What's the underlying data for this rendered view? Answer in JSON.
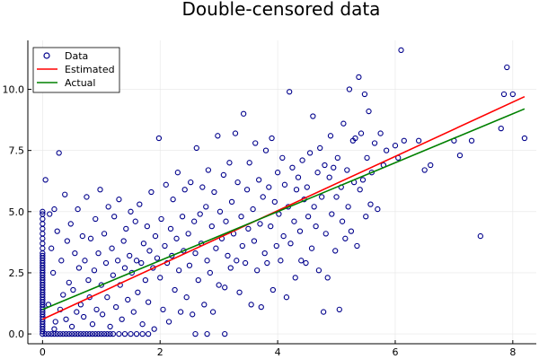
{
  "chart_data": {
    "type": "scatter",
    "title": "Double-censored data",
    "xlabel": "",
    "ylabel": "",
    "xlim": [
      -0.25,
      8.4
    ],
    "ylim": [
      -0.4,
      12.0
    ],
    "x_ticks": [
      0,
      2,
      4,
      6,
      8
    ],
    "y_ticks": [
      0.0,
      2.5,
      5.0,
      7.5,
      10.0
    ],
    "x_tick_labels": [
      "0",
      "2",
      "4",
      "6",
      "8"
    ],
    "y_tick_labels": [
      "0.0",
      "2.5",
      "5.0",
      "7.5",
      "10.0"
    ],
    "grid": true,
    "legend_position": "top-left",
    "legend": [
      "Data",
      "Estimated",
      "Actual"
    ],
    "colors": {
      "data": "#00008b",
      "estimated": "#ff0000",
      "actual": "#008000"
    },
    "series": [
      {
        "name": "Data",
        "kind": "scatter",
        "points": [
          [
            0.0,
            0.0
          ],
          [
            0.0,
            0.1
          ],
          [
            0.0,
            0.2
          ],
          [
            0.0,
            0.3
          ],
          [
            0.0,
            0.4
          ],
          [
            0.0,
            0.5
          ],
          [
            0.0,
            0.6
          ],
          [
            0.0,
            0.7
          ],
          [
            0.0,
            0.8
          ],
          [
            0.0,
            0.9
          ],
          [
            0.0,
            1.0
          ],
          [
            0.0,
            1.1
          ],
          [
            0.0,
            1.2
          ],
          [
            0.0,
            1.3
          ],
          [
            0.0,
            1.4
          ],
          [
            0.0,
            1.5
          ],
          [
            0.0,
            1.6
          ],
          [
            0.0,
            1.7
          ],
          [
            0.0,
            1.8
          ],
          [
            0.0,
            1.9
          ],
          [
            0.0,
            2.0
          ],
          [
            0.0,
            2.1
          ],
          [
            0.0,
            2.2
          ],
          [
            0.0,
            2.3
          ],
          [
            0.0,
            2.4
          ],
          [
            0.0,
            2.5
          ],
          [
            0.0,
            2.6
          ],
          [
            0.0,
            2.7
          ],
          [
            0.0,
            2.8
          ],
          [
            0.0,
            2.9
          ],
          [
            0.0,
            3.0
          ],
          [
            0.0,
            3.1
          ],
          [
            0.0,
            3.2
          ],
          [
            0.0,
            3.3
          ],
          [
            0.0,
            3.5
          ],
          [
            0.0,
            3.7
          ],
          [
            0.0,
            3.9
          ],
          [
            0.0,
            4.1
          ],
          [
            0.0,
            4.3
          ],
          [
            0.0,
            4.5
          ],
          [
            0.0,
            4.7
          ],
          [
            0.0,
            4.9
          ],
          [
            0.0,
            5.0
          ],
          [
            0.05,
            0.0
          ],
          [
            0.1,
            0.0
          ],
          [
            0.15,
            0.0
          ],
          [
            0.2,
            0.0
          ],
          [
            0.25,
            0.0
          ],
          [
            0.3,
            0.0
          ],
          [
            0.35,
            0.0
          ],
          [
            0.4,
            0.0
          ],
          [
            0.45,
            0.0
          ],
          [
            0.5,
            0.0
          ],
          [
            0.55,
            0.0
          ],
          [
            0.6,
            0.0
          ],
          [
            0.65,
            0.0
          ],
          [
            0.7,
            0.0
          ],
          [
            0.75,
            0.0
          ],
          [
            0.8,
            0.0
          ],
          [
            0.85,
            0.0
          ],
          [
            0.9,
            0.0
          ],
          [
            0.95,
            0.0
          ],
          [
            1.0,
            0.0
          ],
          [
            1.05,
            0.0
          ],
          [
            1.1,
            0.0
          ],
          [
            1.15,
            0.0
          ],
          [
            1.2,
            0.0
          ],
          [
            1.3,
            0.0
          ],
          [
            1.4,
            0.0
          ],
          [
            1.5,
            0.0
          ],
          [
            1.6,
            0.0
          ],
          [
            1.7,
            0.0
          ],
          [
            1.8,
            0.0
          ],
          [
            2.6,
            0.0
          ],
          [
            2.8,
            0.0
          ],
          [
            3.1,
            0.0
          ],
          [
            0.05,
            6.3
          ],
          [
            0.1,
            1.2
          ],
          [
            0.12,
            4.9
          ],
          [
            0.15,
            3.5
          ],
          [
            0.18,
            2.5
          ],
          [
            0.2,
            0.2
          ],
          [
            0.2,
            5.1
          ],
          [
            0.22,
            0.5
          ],
          [
            0.25,
            4.2
          ],
          [
            0.28,
            7.4
          ],
          [
            0.3,
            1.0
          ],
          [
            0.32,
            3.0
          ],
          [
            0.35,
            1.6
          ],
          [
            0.38,
            5.7
          ],
          [
            0.4,
            0.6
          ],
          [
            0.42,
            3.8
          ],
          [
            0.45,
            2.1
          ],
          [
            0.48,
            4.5
          ],
          [
            0.5,
            0.3
          ],
          [
            0.52,
            1.8
          ],
          [
            0.55,
            3.3
          ],
          [
            0.58,
            0.9
          ],
          [
            0.6,
            5.1
          ],
          [
            0.62,
            2.7
          ],
          [
            0.65,
            1.2
          ],
          [
            0.68,
            4.0
          ],
          [
            0.7,
            0.7
          ],
          [
            0.72,
            3.0
          ],
          [
            0.75,
            5.6
          ],
          [
            0.78,
            2.2
          ],
          [
            0.8,
            1.5
          ],
          [
            0.82,
            3.9
          ],
          [
            0.85,
            0.4
          ],
          [
            0.88,
            2.6
          ],
          [
            0.9,
            4.7
          ],
          [
            0.92,
            1.0
          ],
          [
            0.95,
            3.3
          ],
          [
            0.98,
            5.9
          ],
          [
            1.0,
            2.0
          ],
          [
            1.02,
            0.8
          ],
          [
            1.05,
            4.1
          ],
          [
            1.08,
            2.9
          ],
          [
            1.1,
            1.5
          ],
          [
            1.12,
            5.2
          ],
          [
            1.15,
            0.3
          ],
          [
            1.18,
            3.5
          ],
          [
            1.2,
            2.4
          ],
          [
            1.22,
            4.8
          ],
          [
            1.25,
            1.1
          ],
          [
            1.28,
            3.0
          ],
          [
            1.3,
            5.5
          ],
          [
            1.32,
            2.0
          ],
          [
            1.35,
            0.6
          ],
          [
            1.38,
            3.8
          ],
          [
            1.4,
            2.7
          ],
          [
            1.42,
            4.3
          ],
          [
            1.45,
            1.4
          ],
          [
            1.48,
            3.2
          ],
          [
            1.5,
            5.0
          ],
          [
            1.52,
            2.5
          ],
          [
            1.55,
            0.9
          ],
          [
            1.58,
            4.6
          ],
          [
            1.6,
            3.0
          ],
          [
            1.62,
            1.7
          ],
          [
            1.65,
            5.3
          ],
          [
            1.68,
            2.9
          ],
          [
            1.7,
            0.4
          ],
          [
            1.72,
            3.7
          ],
          [
            1.75,
            2.2
          ],
          [
            1.78,
            4.4
          ],
          [
            1.8,
            1.3
          ],
          [
            1.82,
            3.4
          ],
          [
            1.85,
            5.8
          ],
          [
            1.88,
            2.7
          ],
          [
            1.9,
            0.2
          ],
          [
            1.92,
            4.0
          ],
          [
            1.95,
            3.1
          ],
          [
            1.98,
            8.0
          ],
          [
            2.0,
            2.3
          ],
          [
            2.02,
            4.7
          ],
          [
            2.05,
            1.0
          ],
          [
            2.08,
            3.6
          ],
          [
            2.1,
            6.1
          ],
          [
            2.12,
            2.9
          ],
          [
            2.15,
            0.5
          ],
          [
            2.18,
            4.3
          ],
          [
            2.2,
            3.2
          ],
          [
            2.22,
            5.5
          ],
          [
            2.25,
            1.8
          ],
          [
            2.28,
            3.9
          ],
          [
            2.3,
            6.6
          ],
          [
            2.32,
            2.6
          ],
          [
            2.35,
            0.9
          ],
          [
            2.38,
            4.8
          ],
          [
            2.4,
            3.4
          ],
          [
            2.42,
            5.9
          ],
          [
            2.45,
            1.5
          ],
          [
            2.48,
            4.1
          ],
          [
            2.5,
            2.8
          ],
          [
            2.52,
            6.2
          ],
          [
            2.55,
            0.8
          ],
          [
            2.58,
            4.6
          ],
          [
            2.6,
            3.3
          ],
          [
            2.62,
            7.6
          ],
          [
            2.65,
            2.2
          ],
          [
            2.68,
            4.9
          ],
          [
            2.7,
            3.7
          ],
          [
            2.72,
            6.0
          ],
          [
            2.75,
            1.2
          ],
          [
            2.78,
            5.2
          ],
          [
            2.8,
            3.0
          ],
          [
            2.82,
            6.7
          ],
          [
            2.85,
            2.5
          ],
          [
            2.88,
            4.4
          ],
          [
            2.9,
            0.9
          ],
          [
            2.92,
            5.8
          ],
          [
            2.95,
            3.5
          ],
          [
            2.98,
            8.1
          ],
          [
            3.0,
            2.0
          ],
          [
            3.02,
            5.0
          ],
          [
            3.05,
            3.9
          ],
          [
            3.08,
            6.5
          ],
          [
            3.1,
            1.9
          ],
          [
            3.12,
            4.6
          ],
          [
            3.15,
            3.2
          ],
          [
            3.18,
            7.0
          ],
          [
            3.2,
            2.7
          ],
          [
            3.22,
            5.4
          ],
          [
            3.25,
            4.1
          ],
          [
            3.28,
            8.2
          ],
          [
            3.3,
            3.0
          ],
          [
            3.32,
            6.2
          ],
          [
            3.35,
            1.7
          ],
          [
            3.38,
            4.8
          ],
          [
            3.4,
            3.6
          ],
          [
            3.42,
            9.0
          ],
          [
            3.45,
            2.9
          ],
          [
            3.48,
            5.9
          ],
          [
            3.5,
            4.3
          ],
          [
            3.52,
            7.0
          ],
          [
            3.55,
            1.2
          ],
          [
            3.58,
            5.1
          ],
          [
            3.6,
            3.8
          ],
          [
            3.62,
            7.8
          ],
          [
            3.65,
            2.6
          ],
          [
            3.68,
            6.3
          ],
          [
            3.7,
            4.5
          ],
          [
            3.72,
            1.1
          ],
          [
            3.75,
            5.6
          ],
          [
            3.78,
            3.3
          ],
          [
            3.8,
            7.5
          ],
          [
            3.82,
            2.9
          ],
          [
            3.85,
            6.0
          ],
          [
            3.88,
            4.4
          ],
          [
            3.9,
            8.0
          ],
          [
            3.92,
            1.8
          ],
          [
            3.95,
            5.4
          ],
          [
            3.98,
            3.6
          ],
          [
            4.0,
            6.6
          ],
          [
            4.02,
            4.9
          ],
          [
            4.05,
            3.0
          ],
          [
            4.08,
            7.2
          ],
          [
            4.1,
            4.0
          ],
          [
            4.12,
            6.1
          ],
          [
            4.15,
            1.5
          ],
          [
            4.18,
            5.2
          ],
          [
            4.2,
            9.9
          ],
          [
            4.22,
            3.7
          ],
          [
            4.25,
            6.8
          ],
          [
            4.28,
            4.6
          ],
          [
            4.3,
            2.3
          ],
          [
            4.32,
            5.9
          ],
          [
            4.35,
            6.4
          ],
          [
            4.38,
            4.2
          ],
          [
            4.4,
            3.0
          ],
          [
            4.42,
            7.1
          ],
          [
            4.45,
            5.5
          ],
          [
            4.48,
            2.9
          ],
          [
            4.5,
            6.0
          ],
          [
            4.52,
            4.8
          ],
          [
            4.55,
            7.4
          ],
          [
            4.58,
            3.5
          ],
          [
            4.6,
            8.9
          ],
          [
            4.62,
            5.2
          ],
          [
            4.65,
            4.4
          ],
          [
            4.68,
            6.6
          ],
          [
            4.7,
            2.6
          ],
          [
            4.72,
            7.6
          ],
          [
            4.75,
            5.6
          ],
          [
            4.78,
            0.9
          ],
          [
            4.8,
            6.9
          ],
          [
            4.82,
            4.1
          ],
          [
            4.85,
            2.3
          ],
          [
            4.88,
            6.4
          ],
          [
            4.9,
            8.1
          ],
          [
            4.92,
            4.9
          ],
          [
            4.95,
            6.8
          ],
          [
            4.98,
            3.4
          ],
          [
            5.0,
            5.6
          ],
          [
            5.02,
            7.2
          ],
          [
            5.05,
            1.0
          ],
          [
            5.08,
            6.0
          ],
          [
            5.1,
            4.6
          ],
          [
            5.12,
            8.6
          ],
          [
            5.15,
            3.9
          ],
          [
            5.18,
            6.7
          ],
          [
            5.2,
            5.2
          ],
          [
            5.22,
            10.0
          ],
          [
            5.25,
            4.2
          ],
          [
            5.28,
            7.9
          ],
          [
            5.3,
            6.2
          ],
          [
            5.32,
            8.0
          ],
          [
            5.35,
            3.6
          ],
          [
            5.38,
            10.5
          ],
          [
            5.4,
            5.9
          ],
          [
            5.42,
            8.2
          ],
          [
            5.45,
            6.3
          ],
          [
            5.48,
            9.8
          ],
          [
            5.5,
            4.8
          ],
          [
            5.52,
            7.2
          ],
          [
            5.55,
            9.1
          ],
          [
            5.58,
            5.3
          ],
          [
            5.6,
            6.6
          ],
          [
            5.65,
            7.8
          ],
          [
            5.7,
            5.1
          ],
          [
            5.75,
            8.2
          ],
          [
            5.8,
            6.9
          ],
          [
            5.85,
            7.5
          ],
          [
            6.0,
            7.7
          ],
          [
            6.05,
            7.2
          ],
          [
            6.1,
            11.6
          ],
          [
            6.15,
            7.9
          ],
          [
            6.4,
            7.9
          ],
          [
            6.5,
            6.7
          ],
          [
            6.6,
            6.9
          ],
          [
            7.0,
            7.9
          ],
          [
            7.1,
            7.3
          ],
          [
            7.3,
            7.9
          ],
          [
            7.45,
            4.0
          ],
          [
            7.8,
            8.4
          ],
          [
            7.85,
            9.8
          ],
          [
            7.9,
            10.9
          ],
          [
            8.0,
            9.8
          ],
          [
            8.2,
            8.0
          ]
        ]
      },
      {
        "name": "Estimated",
        "kind": "line",
        "x": [
          0.0,
          8.2
        ],
        "y": [
          0.6,
          9.7
        ]
      },
      {
        "name": "Actual",
        "kind": "line",
        "x": [
          0.0,
          8.2
        ],
        "y": [
          1.0,
          9.2
        ]
      }
    ]
  }
}
